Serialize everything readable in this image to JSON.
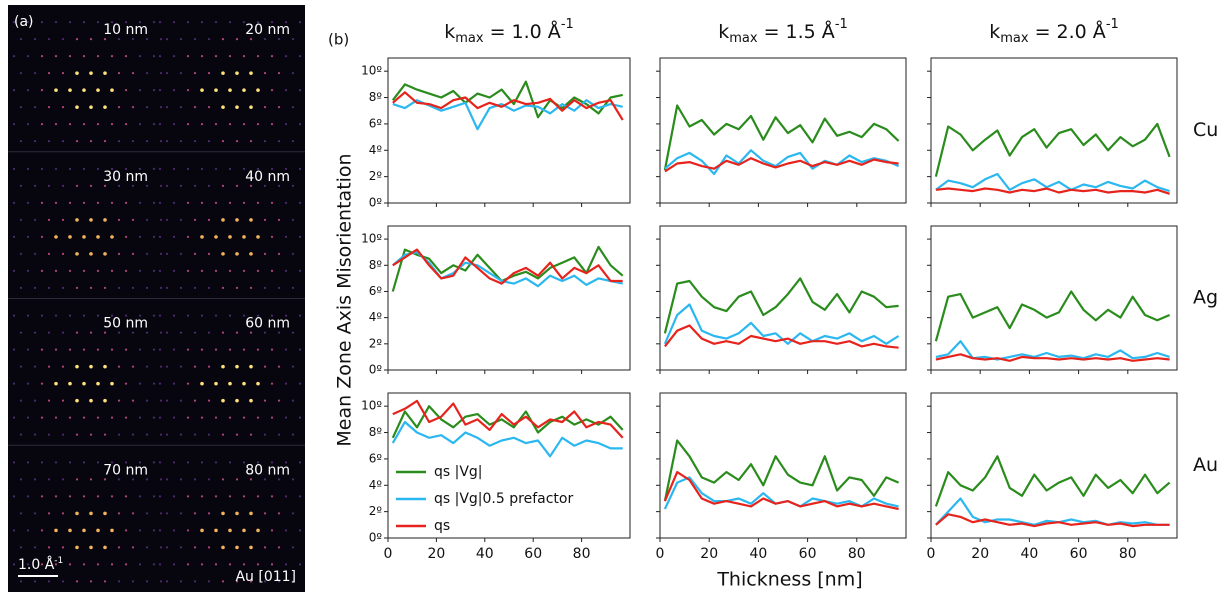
{
  "panel_a": {
    "label": "(a)",
    "thicknesses": [
      "10 nm",
      "20 nm",
      "30 nm",
      "40 nm",
      "50 nm",
      "60 nm",
      "70 nm",
      "80 nm"
    ],
    "scale_bar": {
      "main": "1.0 Å",
      "sup": "-1"
    },
    "zone": "Au [011]"
  },
  "figure": {
    "label": "(b)",
    "ylabel": "Mean Zone Axis Misorientation",
    "xlabel": "Thickness [nm]"
  },
  "chart_data": [
    {
      "type": "line",
      "title": {
        "main": "k",
        "sub": "max",
        "rest": " = 1.0 Å",
        "sup": "-1"
      },
      "x": [
        2,
        7,
        12,
        17,
        22,
        27,
        32,
        37,
        42,
        47,
        52,
        57,
        62,
        67,
        72,
        77,
        82,
        87,
        92,
        97
      ],
      "xlim": [
        0,
        100
      ],
      "ylim": [
        0,
        11
      ],
      "xticks": [
        0,
        20,
        40,
        60,
        80
      ],
      "show_xtick_labels": false,
      "yticks": [
        {
          "value": 0,
          "label": "0º"
        },
        {
          "value": 2,
          "label": "2º"
        },
        {
          "value": 4,
          "label": "4º"
        },
        {
          "value": 6,
          "label": "6º"
        },
        {
          "value": 8,
          "label": "8º"
        },
        {
          "value": 10,
          "label": "10º"
        }
      ],
      "series": [
        {
          "color": "#2a8c1c",
          "values": [
            7.8,
            9.0,
            8.6,
            8.3,
            8.0,
            8.5,
            7.6,
            8.3,
            8.0,
            8.6,
            7.5,
            9.2,
            6.5,
            7.8,
            7.2,
            8.0,
            7.5,
            6.8,
            8.0,
            8.2
          ]
        },
        {
          "color": "#2bb7ef",
          "values": [
            7.5,
            7.2,
            7.8,
            7.4,
            7.0,
            7.3,
            7.6,
            5.6,
            7.2,
            7.5,
            7.0,
            7.4,
            7.3,
            6.8,
            7.5,
            7.0,
            7.8,
            7.2,
            7.5,
            7.3
          ]
        },
        {
          "color": "#e6231c",
          "values": [
            7.6,
            8.4,
            7.6,
            7.5,
            7.2,
            7.8,
            8.0,
            7.2,
            7.6,
            7.3,
            7.8,
            7.5,
            7.6,
            7.9,
            7.0,
            7.8,
            7.2,
            7.6,
            7.8,
            6.3
          ]
        }
      ]
    },
    {
      "type": "line",
      "title": {
        "main": "k",
        "sub": "max",
        "rest": " = 1.5 Å",
        "sup": "-1"
      },
      "x": [
        2,
        7,
        12,
        17,
        22,
        27,
        32,
        37,
        42,
        47,
        52,
        57,
        62,
        67,
        72,
        77,
        82,
        87,
        92,
        97
      ],
      "xlim": [
        0,
        100
      ],
      "ylim": [
        0,
        11
      ],
      "xticks": [
        0,
        20,
        40,
        60,
        80
      ],
      "show_xtick_labels": false,
      "yticks": [
        0,
        2,
        4,
        6,
        8,
        10
      ],
      "series": [
        {
          "color": "#2a8c1c",
          "values": [
            2.5,
            7.4,
            5.8,
            6.3,
            5.2,
            6.0,
            5.6,
            6.6,
            4.8,
            6.5,
            5.3,
            5.9,
            4.6,
            6.4,
            5.1,
            5.4,
            5.0,
            6.0,
            5.6,
            4.7
          ]
        },
        {
          "color": "#2bb7ef",
          "values": [
            2.6,
            3.4,
            3.8,
            3.2,
            2.2,
            3.6,
            3.0,
            4.0,
            3.2,
            2.8,
            3.5,
            3.8,
            2.6,
            3.2,
            2.9,
            3.6,
            3.1,
            3.4,
            3.2,
            2.8
          ]
        },
        {
          "color": "#e6231c",
          "values": [
            2.4,
            3.0,
            3.1,
            2.8,
            2.6,
            3.2,
            2.9,
            3.4,
            3.0,
            2.7,
            3.0,
            3.2,
            2.8,
            3.1,
            2.9,
            3.2,
            2.9,
            3.3,
            3.1,
            3.0
          ]
        }
      ]
    },
    {
      "type": "line",
      "title": {
        "main": "k",
        "sub": "max",
        "rest": " = 2.0 Å",
        "sup": "-1"
      },
      "row_label": "Cu",
      "x": [
        2,
        7,
        12,
        17,
        22,
        27,
        32,
        37,
        42,
        47,
        52,
        57,
        62,
        67,
        72,
        77,
        82,
        87,
        92,
        97
      ],
      "xlim": [
        0,
        100
      ],
      "ylim": [
        0,
        11
      ],
      "xticks": [
        0,
        20,
        40,
        60,
        80
      ],
      "show_xtick_labels": false,
      "yticks": [
        0,
        2,
        4,
        6,
        8,
        10
      ],
      "series": [
        {
          "color": "#2a8c1c",
          "values": [
            2.0,
            5.8,
            5.2,
            4.0,
            4.8,
            5.5,
            3.6,
            5.0,
            5.6,
            4.2,
            5.3,
            5.6,
            4.4,
            5.2,
            4.0,
            5.0,
            4.3,
            4.8,
            6.0,
            3.5
          ]
        },
        {
          "color": "#2bb7ef",
          "values": [
            1.0,
            1.7,
            1.5,
            1.2,
            1.8,
            2.2,
            1.0,
            1.5,
            1.8,
            1.2,
            1.6,
            1.0,
            1.4,
            1.2,
            1.6,
            1.3,
            1.1,
            1.7,
            1.2,
            0.9
          ]
        },
        {
          "color": "#e6231c",
          "values": [
            1.0,
            1.1,
            1.0,
            0.9,
            1.1,
            1.0,
            0.8,
            1.0,
            0.9,
            1.1,
            0.8,
            1.0,
            0.9,
            1.0,
            0.8,
            0.9,
            0.9,
            0.8,
            1.0,
            0.7
          ]
        }
      ]
    },
    {
      "type": "line",
      "x": [
        2,
        7,
        12,
        17,
        22,
        27,
        32,
        37,
        42,
        47,
        52,
        57,
        62,
        67,
        72,
        77,
        82,
        87,
        92,
        97
      ],
      "xlim": [
        0,
        100
      ],
      "ylim": [
        0,
        11
      ],
      "xticks": [
        0,
        20,
        40,
        60,
        80
      ],
      "show_xtick_labels": false,
      "yticks": [
        {
          "value": 0,
          "label": "0º"
        },
        {
          "value": 2,
          "label": "2º"
        },
        {
          "value": 4,
          "label": "4º"
        },
        {
          "value": 6,
          "label": "6º"
        },
        {
          "value": 8,
          "label": "8º"
        },
        {
          "value": 10,
          "label": "10º"
        }
      ],
      "series": [
        {
          "color": "#2a8c1c",
          "values": [
            6.0,
            9.2,
            8.8,
            8.5,
            7.4,
            8.0,
            7.6,
            8.8,
            7.8,
            6.8,
            7.2,
            7.5,
            7.0,
            7.8,
            8.2,
            8.6,
            7.4,
            9.4,
            8.0,
            7.2
          ]
        },
        {
          "color": "#2bb7ef",
          "values": [
            8.0,
            8.8,
            9.0,
            8.2,
            7.0,
            7.4,
            8.2,
            8.0,
            7.4,
            6.8,
            6.6,
            7.0,
            6.4,
            7.2,
            6.8,
            7.2,
            6.5,
            7.0,
            6.8,
            6.6
          ]
        },
        {
          "color": "#e6231c",
          "values": [
            8.0,
            8.6,
            9.2,
            8.0,
            7.0,
            7.2,
            8.6,
            7.8,
            7.0,
            6.6,
            7.4,
            7.8,
            7.2,
            8.2,
            7.0,
            7.8,
            7.4,
            8.0,
            6.8,
            6.8
          ]
        }
      ]
    },
    {
      "type": "line",
      "x": [
        2,
        7,
        12,
        17,
        22,
        27,
        32,
        37,
        42,
        47,
        52,
        57,
        62,
        67,
        72,
        77,
        82,
        87,
        92,
        97
      ],
      "xlim": [
        0,
        100
      ],
      "ylim": [
        0,
        11
      ],
      "xticks": [
        0,
        20,
        40,
        60,
        80
      ],
      "show_xtick_labels": false,
      "yticks": [
        0,
        2,
        4,
        6,
        8,
        10
      ],
      "series": [
        {
          "color": "#2a8c1c",
          "values": [
            2.8,
            6.6,
            6.8,
            5.6,
            4.8,
            4.5,
            5.6,
            6.0,
            4.2,
            4.8,
            5.8,
            7.0,
            5.2,
            4.6,
            5.8,
            4.4,
            6.0,
            5.6,
            4.8,
            4.9
          ]
        },
        {
          "color": "#2bb7ef",
          "values": [
            2.0,
            4.2,
            5.0,
            3.0,
            2.6,
            2.4,
            2.8,
            3.6,
            2.6,
            2.8,
            2.0,
            2.8,
            2.2,
            2.6,
            2.4,
            2.8,
            2.2,
            2.6,
            2.0,
            2.6
          ]
        },
        {
          "color": "#e6231c",
          "values": [
            1.8,
            3.0,
            3.4,
            2.4,
            2.0,
            2.2,
            2.0,
            2.6,
            2.4,
            2.2,
            2.4,
            2.0,
            2.2,
            2.2,
            2.0,
            2.2,
            1.8,
            2.0,
            1.8,
            1.7
          ]
        }
      ]
    },
    {
      "type": "line",
      "row_label": "Ag",
      "x": [
        2,
        7,
        12,
        17,
        22,
        27,
        32,
        37,
        42,
        47,
        52,
        57,
        62,
        67,
        72,
        77,
        82,
        87,
        92,
        97
      ],
      "xlim": [
        0,
        100
      ],
      "ylim": [
        0,
        11
      ],
      "xticks": [
        0,
        20,
        40,
        60,
        80
      ],
      "show_xtick_labels": false,
      "yticks": [
        0,
        2,
        4,
        6,
        8,
        10
      ],
      "series": [
        {
          "color": "#2a8c1c",
          "values": [
            2.2,
            5.6,
            5.8,
            4.0,
            4.4,
            4.8,
            3.2,
            5.0,
            4.6,
            4.0,
            4.4,
            6.0,
            4.6,
            3.8,
            4.6,
            4.0,
            5.6,
            4.2,
            3.8,
            4.2
          ]
        },
        {
          "color": "#2bb7ef",
          "values": [
            1.0,
            1.2,
            2.2,
            0.9,
            1.0,
            0.8,
            1.0,
            1.2,
            1.0,
            1.3,
            1.0,
            1.1,
            0.9,
            1.2,
            1.0,
            1.5,
            0.9,
            1.0,
            1.3,
            1.0
          ]
        },
        {
          "color": "#e6231c",
          "values": [
            0.8,
            1.0,
            1.2,
            0.9,
            0.8,
            0.9,
            0.7,
            1.0,
            0.9,
            0.9,
            0.8,
            0.9,
            0.8,
            0.9,
            0.8,
            0.9,
            0.7,
            0.8,
            0.9,
            0.8
          ]
        }
      ]
    },
    {
      "type": "line",
      "legend": "lower left",
      "x": [
        2,
        7,
        12,
        17,
        22,
        27,
        32,
        37,
        42,
        47,
        52,
        57,
        62,
        67,
        72,
        77,
        82,
        87,
        92,
        97
      ],
      "xlim": [
        0,
        100
      ],
      "ylim": [
        0,
        11
      ],
      "xticks": [
        0,
        20,
        40,
        60,
        80
      ],
      "show_xtick_labels": true,
      "yticks": [
        {
          "value": 0,
          "label": "0º"
        },
        {
          "value": 2,
          "label": "2º"
        },
        {
          "value": 4,
          "label": "4º"
        },
        {
          "value": 6,
          "label": "6º"
        },
        {
          "value": 8,
          "label": "8º"
        },
        {
          "value": 10,
          "label": "10º"
        }
      ],
      "series": [
        {
          "name": "qs |Vg|",
          "color": "#2a8c1c",
          "values": [
            7.6,
            9.6,
            8.4,
            10.0,
            9.0,
            8.4,
            9.2,
            9.4,
            8.6,
            9.0,
            8.4,
            9.6,
            8.0,
            8.8,
            9.2,
            8.6,
            9.0,
            8.6,
            9.2,
            8.2
          ]
        },
        {
          "name": "qs |Vg|0.5  prefactor",
          "color": "#2bb7ef",
          "values": [
            7.2,
            8.8,
            8.0,
            7.6,
            7.8,
            7.2,
            8.0,
            7.6,
            7.0,
            7.4,
            7.6,
            7.2,
            7.4,
            6.2,
            7.6,
            7.0,
            7.4,
            7.2,
            6.8,
            6.8
          ]
        },
        {
          "name": "qs",
          "color": "#e6231c",
          "values": [
            9.4,
            9.8,
            10.4,
            8.8,
            9.2,
            10.2,
            8.6,
            9.0,
            8.2,
            9.4,
            8.6,
            9.2,
            8.4,
            9.0,
            8.8,
            9.6,
            8.4,
            8.8,
            8.6,
            7.6
          ]
        }
      ]
    },
    {
      "type": "line",
      "x": [
        2,
        7,
        12,
        17,
        22,
        27,
        32,
        37,
        42,
        47,
        52,
        57,
        62,
        67,
        72,
        77,
        82,
        87,
        92,
        97
      ],
      "xlim": [
        0,
        100
      ],
      "ylim": [
        0,
        11
      ],
      "xticks": [
        0,
        20,
        40,
        60,
        80
      ],
      "show_xtick_labels": true,
      "yticks": [
        0,
        2,
        4,
        6,
        8,
        10
      ],
      "series": [
        {
          "color": "#2a8c1c",
          "values": [
            2.8,
            7.4,
            6.2,
            4.6,
            4.2,
            5.0,
            4.4,
            5.6,
            4.0,
            6.2,
            4.8,
            4.2,
            4.0,
            6.2,
            3.6,
            4.6,
            4.4,
            3.2,
            4.6,
            4.2
          ]
        },
        {
          "color": "#2bb7ef",
          "values": [
            2.2,
            4.2,
            4.6,
            3.4,
            2.8,
            2.8,
            3.0,
            2.6,
            3.4,
            2.6,
            2.8,
            2.4,
            3.0,
            2.8,
            2.6,
            2.8,
            2.4,
            3.0,
            2.6,
            2.4
          ]
        },
        {
          "color": "#e6231c",
          "values": [
            2.8,
            5.0,
            4.4,
            3.0,
            2.6,
            2.8,
            2.6,
            2.4,
            3.0,
            2.6,
            2.8,
            2.4,
            2.6,
            2.8,
            2.4,
            2.6,
            2.4,
            2.6,
            2.4,
            2.2
          ]
        }
      ]
    },
    {
      "type": "line",
      "row_label": "Au",
      "x": [
        2,
        7,
        12,
        17,
        22,
        27,
        32,
        37,
        42,
        47,
        52,
        57,
        62,
        67,
        72,
        77,
        82,
        87,
        92,
        97
      ],
      "xlim": [
        0,
        100
      ],
      "ylim": [
        0,
        11
      ],
      "xticks": [
        0,
        20,
        40,
        60,
        80
      ],
      "show_xtick_labels": true,
      "yticks": [
        0,
        2,
        4,
        6,
        8,
        10
      ],
      "series": [
        {
          "color": "#2a8c1c",
          "values": [
            2.4,
            5.0,
            4.0,
            3.6,
            4.6,
            6.2,
            3.8,
            3.2,
            4.8,
            3.6,
            4.2,
            4.6,
            3.2,
            4.8,
            3.8,
            4.4,
            3.4,
            4.8,
            3.4,
            4.2
          ]
        },
        {
          "color": "#2bb7ef",
          "values": [
            1.0,
            2.0,
            3.0,
            1.6,
            1.2,
            1.4,
            1.4,
            1.2,
            1.0,
            1.3,
            1.2,
            1.4,
            1.2,
            1.3,
            1.0,
            1.2,
            1.1,
            1.2,
            1.0,
            1.0
          ]
        },
        {
          "color": "#e6231c",
          "values": [
            1.0,
            1.8,
            1.6,
            1.2,
            1.4,
            1.2,
            1.0,
            1.1,
            0.9,
            1.1,
            1.2,
            1.0,
            1.1,
            1.2,
            1.0,
            1.1,
            0.9,
            1.0,
            1.0,
            1.0
          ]
        }
      ]
    }
  ]
}
